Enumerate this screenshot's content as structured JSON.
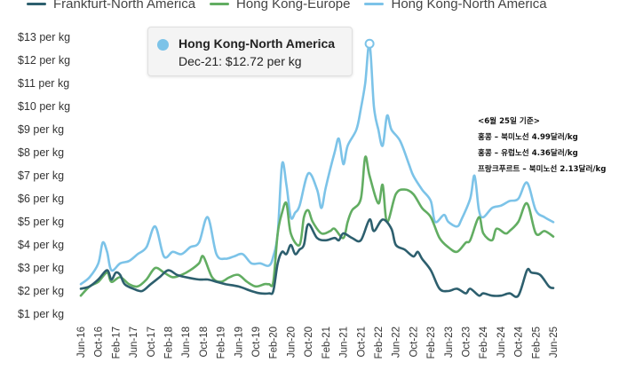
{
  "chart_data": {
    "type": "line",
    "title": "",
    "xlabel": "",
    "ylabel": "",
    "ylim": [
      0.5,
      13.5
    ],
    "y_ticks": [
      1,
      2,
      3,
      4,
      5,
      6,
      7,
      8,
      9,
      10,
      11,
      12,
      13
    ],
    "y_tick_labels": [
      "$1 per kg",
      "$2 per kg",
      "$3 per kg",
      "$4 per kg",
      "$5 per kg",
      "$6 per kg",
      "$7 per kg",
      "$8 per kg",
      "$9 per kg",
      "$10 per kg",
      "$11 per kg",
      "$12 per kg",
      "$13 per kg"
    ],
    "x_start": "2016-06",
    "x_end": "2025-06",
    "x_tick_labels": [
      "Jun-16",
      "Oct-16",
      "Feb-17",
      "Jun-17",
      "Oct-17",
      "Feb-18",
      "Jun-18",
      "Oct-18",
      "Feb-19",
      "Jun-19",
      "Oct-19",
      "Feb-20",
      "Jun-20",
      "Oct-20",
      "Feb-21",
      "Jun-21",
      "Oct-21",
      "Feb-22",
      "Jun-22",
      "Oct-22",
      "Feb-23",
      "Jun-23",
      "Oct-23",
      "Feb-24",
      "Jun-24",
      "Oct-24",
      "Feb-25",
      "Jun-25"
    ],
    "grid": false,
    "legend_position": "top-left",
    "series": [
      {
        "name": "Frankfurt-North America",
        "color": "#2d5f6e",
        "points": [
          [
            "2016-06",
            2.1
          ],
          [
            "2016-08",
            2.2
          ],
          [
            "2016-10",
            2.5
          ],
          [
            "2016-12",
            2.9
          ],
          [
            "2017-01",
            2.5
          ],
          [
            "2017-02",
            2.8
          ],
          [
            "2017-03",
            2.7
          ],
          [
            "2017-04",
            2.3
          ],
          [
            "2017-06",
            2.1
          ],
          [
            "2017-08",
            2.0
          ],
          [
            "2017-10",
            2.3
          ],
          [
            "2017-12",
            2.6
          ],
          [
            "2018-02",
            2.9
          ],
          [
            "2018-04",
            2.7
          ],
          [
            "2018-06",
            2.6
          ],
          [
            "2018-09",
            2.5
          ],
          [
            "2018-11",
            2.5
          ],
          [
            "2019-01",
            2.4
          ],
          [
            "2019-03",
            2.3
          ],
          [
            "2019-06",
            2.2
          ],
          [
            "2019-09",
            2.0
          ],
          [
            "2019-11",
            1.9
          ],
          [
            "2020-01",
            1.9
          ],
          [
            "2020-02",
            2.0
          ],
          [
            "2020-03",
            3.2
          ],
          [
            "2020-04",
            3.7
          ],
          [
            "2020-05",
            3.6
          ],
          [
            "2020-06",
            4.0
          ],
          [
            "2020-07",
            3.6
          ],
          [
            "2020-08",
            3.8
          ],
          [
            "2020-09",
            4.0
          ],
          [
            "2020-10",
            4.9
          ],
          [
            "2020-12",
            4.3
          ],
          [
            "2021-02",
            4.2
          ],
          [
            "2021-04",
            4.3
          ],
          [
            "2021-05",
            4.2
          ],
          [
            "2021-06",
            4.5
          ],
          [
            "2021-08",
            4.3
          ],
          [
            "2021-10",
            4.2
          ],
          [
            "2021-12",
            5.1
          ],
          [
            "2022-01",
            4.6
          ],
          [
            "2022-03",
            5.1
          ],
          [
            "2022-05",
            4.7
          ],
          [
            "2022-06",
            4.0
          ],
          [
            "2022-08",
            3.8
          ],
          [
            "2022-10",
            3.5
          ],
          [
            "2022-11",
            3.7
          ],
          [
            "2022-12",
            3.4
          ],
          [
            "2023-02",
            2.9
          ],
          [
            "2023-04",
            2.1
          ],
          [
            "2023-06",
            2.0
          ],
          [
            "2023-08",
            2.1
          ],
          [
            "2023-10",
            1.9
          ],
          [
            "2023-11",
            2.1
          ],
          [
            "2024-01",
            1.8
          ],
          [
            "2024-02",
            1.9
          ],
          [
            "2024-04",
            1.8
          ],
          [
            "2024-06",
            1.8
          ],
          [
            "2024-08",
            1.9
          ],
          [
            "2024-10",
            1.8
          ],
          [
            "2024-12",
            2.9
          ],
          [
            "2025-01",
            2.8
          ],
          [
            "2025-03",
            2.7
          ],
          [
            "2025-05",
            2.2
          ],
          [
            "2025-06",
            2.13
          ]
        ]
      },
      {
        "name": "Hong Kong-Europe",
        "color": "#62ad62",
        "points": [
          [
            "2016-06",
            1.8
          ],
          [
            "2016-08",
            2.2
          ],
          [
            "2016-10",
            2.4
          ],
          [
            "2016-12",
            2.8
          ],
          [
            "2017-01",
            2.4
          ],
          [
            "2017-03",
            2.6
          ],
          [
            "2017-05",
            2.3
          ],
          [
            "2017-07",
            2.2
          ],
          [
            "2017-09",
            2.5
          ],
          [
            "2017-11",
            3.0
          ],
          [
            "2018-01",
            2.8
          ],
          [
            "2018-03",
            2.6
          ],
          [
            "2018-05",
            2.7
          ],
          [
            "2018-07",
            2.9
          ],
          [
            "2018-09",
            3.2
          ],
          [
            "2018-10",
            3.5
          ],
          [
            "2018-12",
            2.6
          ],
          [
            "2019-02",
            2.4
          ],
          [
            "2019-04",
            2.6
          ],
          [
            "2019-06",
            2.7
          ],
          [
            "2019-08",
            2.4
          ],
          [
            "2019-10",
            2.2
          ],
          [
            "2019-12",
            2.3
          ],
          [
            "2020-01",
            2.3
          ],
          [
            "2020-02",
            2.4
          ],
          [
            "2020-03",
            4.5
          ],
          [
            "2020-04",
            5.4
          ],
          [
            "2020-05",
            5.8
          ],
          [
            "2020-06",
            4.5
          ],
          [
            "2020-08",
            4.0
          ],
          [
            "2020-09",
            5.2
          ],
          [
            "2020-10",
            5.5
          ],
          [
            "2020-11",
            5.0
          ],
          [
            "2021-01",
            4.5
          ],
          [
            "2021-03",
            4.6
          ],
          [
            "2021-04",
            4.7
          ],
          [
            "2021-06",
            4.3
          ],
          [
            "2021-07",
            5.0
          ],
          [
            "2021-08",
            5.5
          ],
          [
            "2021-10",
            6.0
          ],
          [
            "2021-11",
            7.8
          ],
          [
            "2021-12",
            7.0
          ],
          [
            "2022-02",
            5.8
          ],
          [
            "2022-03",
            6.6
          ],
          [
            "2022-04",
            5.0
          ],
          [
            "2022-06",
            6.2
          ],
          [
            "2022-08",
            6.4
          ],
          [
            "2022-10",
            6.2
          ],
          [
            "2022-12",
            5.6
          ],
          [
            "2023-02",
            5.2
          ],
          [
            "2023-04",
            4.3
          ],
          [
            "2023-06",
            3.9
          ],
          [
            "2023-08",
            3.7
          ],
          [
            "2023-10",
            4.1
          ],
          [
            "2023-11",
            4.2
          ],
          [
            "2024-01",
            5.2
          ],
          [
            "2024-02",
            4.5
          ],
          [
            "2024-04",
            4.2
          ],
          [
            "2024-05",
            4.7
          ],
          [
            "2024-07",
            4.5
          ],
          [
            "2024-08",
            4.6
          ],
          [
            "2024-10",
            5.0
          ],
          [
            "2024-12",
            5.8
          ],
          [
            "2025-02",
            4.5
          ],
          [
            "2025-04",
            4.6
          ],
          [
            "2025-06",
            4.36
          ]
        ]
      },
      {
        "name": "Hong Kong-North America",
        "color": "#7cc3e8",
        "points": [
          [
            "2016-06",
            2.3
          ],
          [
            "2016-08",
            2.6
          ],
          [
            "2016-10",
            3.2
          ],
          [
            "2016-11",
            4.1
          ],
          [
            "2016-12",
            3.7
          ],
          [
            "2017-01",
            2.9
          ],
          [
            "2017-03",
            3.2
          ],
          [
            "2017-05",
            3.3
          ],
          [
            "2017-07",
            3.6
          ],
          [
            "2017-09",
            3.9
          ],
          [
            "2017-11",
            4.8
          ],
          [
            "2018-01",
            3.5
          ],
          [
            "2018-03",
            3.7
          ],
          [
            "2018-05",
            3.6
          ],
          [
            "2018-07",
            3.9
          ],
          [
            "2018-09",
            4.1
          ],
          [
            "2018-11",
            5.2
          ],
          [
            "2019-01",
            3.6
          ],
          [
            "2019-03",
            3.4
          ],
          [
            "2019-05",
            3.5
          ],
          [
            "2019-07",
            3.6
          ],
          [
            "2019-09",
            3.2
          ],
          [
            "2019-11",
            3.2
          ],
          [
            "2020-01",
            3.1
          ],
          [
            "2020-02",
            3.5
          ],
          [
            "2020-03",
            4.5
          ],
          [
            "2020-04",
            7.5
          ],
          [
            "2020-05",
            6.6
          ],
          [
            "2020-06",
            5.2
          ],
          [
            "2020-07",
            5.4
          ],
          [
            "2020-08",
            5.7
          ],
          [
            "2020-10",
            7.1
          ],
          [
            "2020-12",
            6.4
          ],
          [
            "2021-01",
            5.6
          ],
          [
            "2021-02",
            6.5
          ],
          [
            "2021-04",
            8.0
          ],
          [
            "2021-05",
            8.6
          ],
          [
            "2021-06",
            7.5
          ],
          [
            "2021-07",
            8.3
          ],
          [
            "2021-09",
            9.0
          ],
          [
            "2021-10",
            9.9
          ],
          [
            "2021-11",
            11.0
          ],
          [
            "2021-12",
            12.72
          ],
          [
            "2022-01",
            10.0
          ],
          [
            "2022-02",
            9.0
          ],
          [
            "2022-03",
            8.3
          ],
          [
            "2022-04",
            9.6
          ],
          [
            "2022-05",
            9.0
          ],
          [
            "2022-07",
            8.5
          ],
          [
            "2022-09",
            7.5
          ],
          [
            "2022-10",
            7.0
          ],
          [
            "2022-12",
            6.4
          ],
          [
            "2023-02",
            5.9
          ],
          [
            "2023-03",
            5.0
          ],
          [
            "2023-05",
            5.3
          ],
          [
            "2023-06",
            5.0
          ],
          [
            "2023-08",
            4.8
          ],
          [
            "2023-09",
            5.1
          ],
          [
            "2023-11",
            6.0
          ],
          [
            "2023-12",
            7.0
          ],
          [
            "2024-01",
            5.5
          ],
          [
            "2024-02",
            5.2
          ],
          [
            "2024-04",
            5.6
          ],
          [
            "2024-06",
            5.7
          ],
          [
            "2024-08",
            5.9
          ],
          [
            "2024-10",
            6.0
          ],
          [
            "2024-12",
            6.7
          ],
          [
            "2025-02",
            5.5
          ],
          [
            "2025-04",
            5.2
          ],
          [
            "2025-06",
            4.99
          ]
        ]
      }
    ],
    "tooltip": {
      "series": "Hong Kong-North America",
      "x": "2021-12",
      "y": 12.72,
      "title": "Hong Kong-North America",
      "label": "Dec-21: $12.72 per kg"
    },
    "annotation": {
      "lines": [
        "<6월 25일 기준>",
        "홍콩 – 북미노선 4.99달러/kg",
        "홍콩 – 유럽노선 4.36달러/kg",
        "프랑크푸르트 – 북미노선 2.13달러/kg"
      ]
    }
  }
}
